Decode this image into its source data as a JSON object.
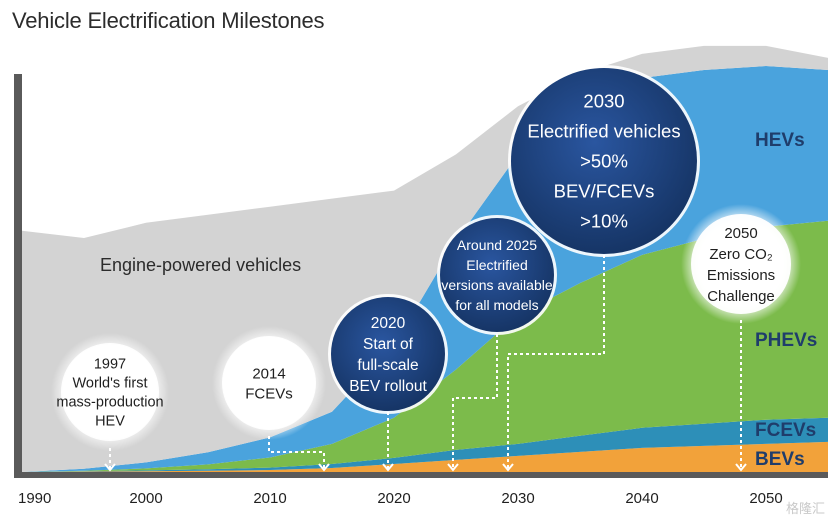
{
  "chart_data": {
    "type": "area",
    "title": "Vehicle Electrification Milestones",
    "xlabel": "",
    "ylabel": "",
    "xlim": [
      1990,
      2055
    ],
    "x_ticks": [
      1990,
      2000,
      2010,
      2020,
      2030,
      2040,
      2050
    ],
    "x_tick_labels": [
      "1990",
      "2000",
      "2010",
      "2020",
      "2030",
      "2040",
      "2050"
    ],
    "ylim": [
      0,
      100
    ],
    "x": [
      1990,
      1995,
      2000,
      2005,
      2010,
      2015,
      2020,
      2025,
      2030,
      2035,
      2040,
      2045,
      2050,
      2055
    ],
    "series": [
      {
        "name": "BEVs",
        "color": "#f2a23a",
        "values": [
          0,
          0.1,
          0.2,
          0.3,
          0.5,
          1.0,
          2.0,
          3.0,
          4.0,
          5.0,
          6.0,
          6.5,
          7.0,
          7.5
        ]
      },
      {
        "name": "FCEVs",
        "color": "#2d8fb8",
        "values": [
          0,
          0.1,
          0.2,
          0.4,
          0.6,
          1.0,
          1.5,
          2.5,
          3.0,
          4.0,
          5.0,
          5.5,
          6.0,
          6.0
        ]
      },
      {
        "name": "PHEVs",
        "color": "#7cbb4b",
        "values": [
          0,
          0.1,
          0.5,
          1.2,
          2.5,
          5.0,
          10.0,
          20.0,
          32.0,
          38.0,
          43.0,
          46.0,
          48.0,
          49.0
        ]
      },
      {
        "name": "HEVs",
        "color": "#4aa3dd",
        "values": [
          0,
          0.5,
          1.5,
          3.0,
          5.0,
          8.0,
          18.0,
          32.0,
          40.0,
          44.0,
          44.0,
          42.0,
          40.0,
          37.5
        ]
      },
      {
        "name": "Engine-powered vehicles",
        "color": "#d3d3d3",
        "values": [
          60,
          57.4,
          59.6,
          59.1,
          57.4,
          53.0,
          38.5,
          21.5,
          12.0,
          8.0,
          6.0,
          6.0,
          5.0,
          3.0
        ]
      }
    ],
    "series_labels": [
      "HEVs",
      "PHEVs",
      "FCEVs",
      "BEVs"
    ],
    "area_label": "Engine-powered vehicles",
    "annotations": [
      {
        "id": "1997",
        "x": 1997,
        "style": "light",
        "lines": [
          "1997",
          "World's first",
          "mass-production",
          "HEV"
        ]
      },
      {
        "id": "2014",
        "x": 2015,
        "style": "light",
        "lines": [
          "2014",
          "FCEVs"
        ]
      },
      {
        "id": "2020",
        "x": 2020,
        "style": "dark",
        "lines": [
          "2020",
          "Start of",
          "full-scale",
          "BEV rollout"
        ]
      },
      {
        "id": "2025",
        "x": 2025,
        "style": "dark",
        "lines": [
          "Around 2025",
          "Electrified",
          "versions available",
          "for all models"
        ]
      },
      {
        "id": "2030",
        "x": 2030,
        "style": "dark",
        "lines": [
          "2030",
          "Electrified vehicles",
          ">50%",
          "BEV/FCEVs",
          ">10%"
        ]
      },
      {
        "id": "2050",
        "x": 2050,
        "style": "light",
        "lines": [
          "2050",
          "Zero CO₂",
          "Emissions",
          "Challenge"
        ]
      }
    ],
    "colors": {
      "axis": "#5a5a5a",
      "dark_circle": "#1d3f7c",
      "connector": "#ffffff"
    }
  },
  "watermark": "格隆汇"
}
